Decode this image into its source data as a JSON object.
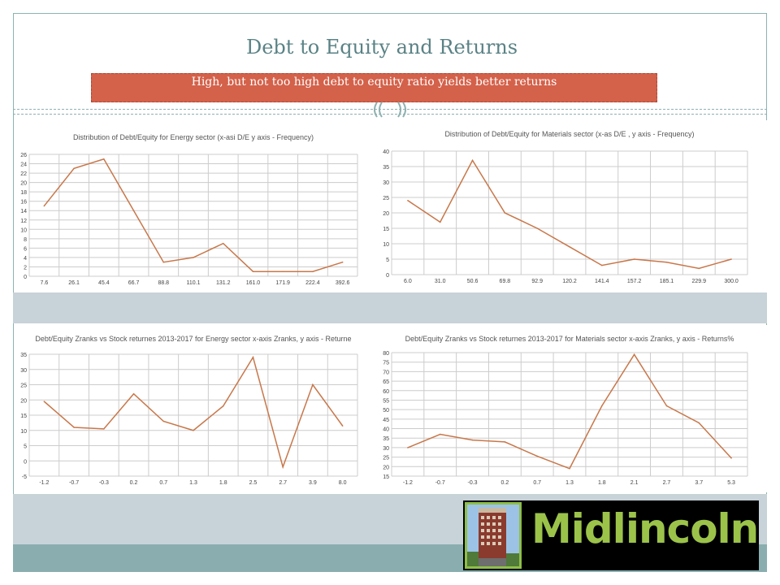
{
  "slide": {
    "title": "Debt to Equity and Returns",
    "subtitle": "High, but not too high debt to equity ratio yields better returns"
  },
  "brand": {
    "name": "Midlincoln",
    "text_color": "#9bc34a",
    "background": "#000000"
  },
  "colors": {
    "accent": "#d4614a",
    "line": "#c8774a",
    "frame": "#8fb0b0",
    "band": "#c7d3d8",
    "footer": "#8aaeb0"
  },
  "charts": [
    {
      "title": "Distribution of Debt/Equity for Energy sector (x-asi D/E y axis - Frequency)",
      "chart_data": {
        "type": "line",
        "title": "Distribution of Debt/Equity for Energy sector (x-asi D/E y axis - Frequency)",
        "categories": [
          "7.6",
          "26.1",
          "45.4",
          "66.7",
          "88.8",
          "110.1",
          "131.2",
          "161.0",
          "171.9",
          "222.4",
          "392.6"
        ],
        "values": [
          15,
          23,
          25,
          14,
          3,
          4,
          7,
          1,
          1,
          1,
          3
        ],
        "ylim": [
          0,
          26
        ],
        "yticks": [
          0,
          2,
          4,
          6,
          8,
          10,
          12,
          14,
          16,
          18,
          20,
          22,
          24,
          26
        ],
        "grid": true
      }
    },
    {
      "title": "Distribution of Debt/Equity for Materials sector (x-as D/E , y axis - Frequency)",
      "chart_data": {
        "type": "line",
        "title": "Distribution of Debt/Equity for Materials sector (x-as D/E , y axis - Frequency)",
        "categories": [
          "6.0",
          "31.0",
          "50.6",
          "69.8",
          "92.9",
          "120.2",
          "141.4",
          "157.2",
          "185.1",
          "229.9",
          "300.0"
        ],
        "values": [
          24,
          17,
          37,
          20,
          15,
          9,
          3,
          5,
          4,
          2,
          5
        ],
        "ylim": [
          0,
          40
        ],
        "yticks": [
          0,
          5,
          10,
          15,
          20,
          25,
          30,
          35,
          40
        ],
        "grid": true
      }
    },
    {
      "title": "Debt/Equity Zranks vs Stock returnes 2013-2017 for Energy sector x-axis Zranks, y axis - Returne",
      "chart_data": {
        "type": "line",
        "title": "Debt/Equity Zranks vs Stock returnes 2013-2017 for Energy sector x-axis Zranks, y axis - Returne",
        "categories": [
          "-1.2",
          "-0.7",
          "-0.3",
          "0.2",
          "0.7",
          "1.3",
          "1.8",
          "2.5",
          "2.7",
          "3.9",
          "8.0"
        ],
        "values": [
          19.5,
          11,
          10.5,
          22,
          13,
          10,
          18,
          34,
          -2,
          25,
          11.5
        ],
        "ylim": [
          -5,
          35
        ],
        "yticks": [
          -5,
          0,
          5,
          10,
          15,
          20,
          25,
          30,
          35
        ],
        "grid": true
      }
    },
    {
      "title": "Debt/Equity Zranks vs Stock returnes 2013-2017 for Materials sector x-axis Zranks, y axis - Returns%",
      "chart_data": {
        "type": "line",
        "title": "Debt/Equity Zranks vs Stock returnes 2013-2017 for Materials sector x-axis Zranks, y axis - Returns%",
        "categories": [
          "-1.2",
          "-0.7",
          "-0.3",
          "0.2",
          "0.7",
          "1.3",
          "1.8",
          "2.1",
          "2.7",
          "3.7",
          "5.3"
        ],
        "values": [
          30,
          37,
          34,
          33,
          25.5,
          19,
          52,
          79,
          52,
          43,
          24.5
        ],
        "ylim": [
          15,
          80
        ],
        "yticks": [
          15,
          20,
          25,
          30,
          35,
          40,
          45,
          50,
          55,
          60,
          65,
          70,
          75,
          80
        ],
        "grid": true
      }
    }
  ]
}
